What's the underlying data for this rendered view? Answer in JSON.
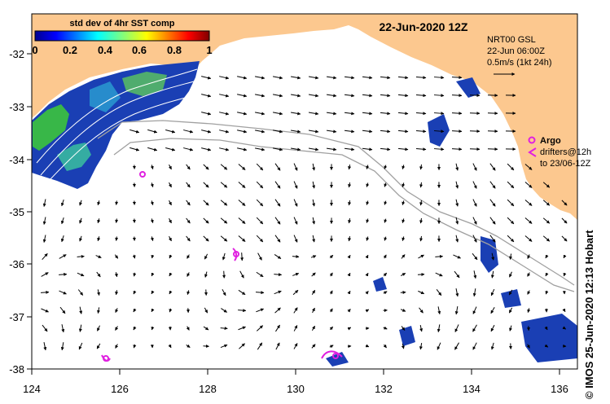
{
  "title": "22-Jun-2020 12Z",
  "colorbar": {
    "label": "std dev of 4hr SST comp",
    "ticks": [
      "0",
      "0.2",
      "0.4",
      "0.6",
      "0.8",
      "1"
    ]
  },
  "current_info": {
    "line1": "NRT00 GSL",
    "line2": "22-Jun 06:00Z",
    "line3": "0.5m/s (1kt 24h)"
  },
  "argo_legend": {
    "argo_label": "Argo",
    "drifters_label": "drifters@12h",
    "drifters_range": "to 23/06-12Z"
  },
  "axes": {
    "x_ticks": [
      "124",
      "126",
      "128",
      "130",
      "132",
      "134",
      "136"
    ],
    "y_ticks": [
      "-32",
      "-33",
      "-34",
      "-35",
      "-36",
      "-37",
      "-38"
    ]
  },
  "credit": "© IMOS 25-Jun-2020 12:13 Hobart",
  "colors": {
    "land": "#fcc88f",
    "argo": "#e020e0",
    "sst_high": "#3cc43c",
    "sst_low": "#1a3fb4",
    "track": "#a0a0a0"
  }
}
